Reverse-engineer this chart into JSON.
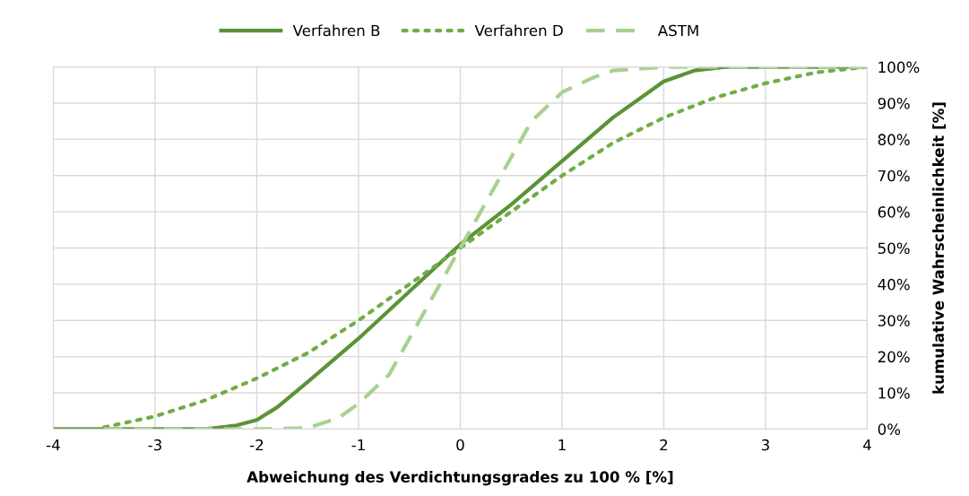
{
  "chart_data": {
    "type": "line",
    "xlabel": "Abweichung des Verdichtungsgrades zu 100 % [%]",
    "ylabel": "kumulative Wahrscheinlichkeit [%]",
    "xlim": [
      -4,
      4
    ],
    "xticks": [
      -4,
      -3,
      -2,
      -1,
      0,
      1,
      2,
      3,
      4
    ],
    "ylim": [
      0,
      100
    ],
    "yticks": [
      {
        "value": 0,
        "label": "0%"
      },
      {
        "value": 10,
        "label": "10%"
      },
      {
        "value": 20,
        "label": "20%"
      },
      {
        "value": 30,
        "label": "30%"
      },
      {
        "value": 40,
        "label": "40%"
      },
      {
        "value": 50,
        "label": "50%"
      },
      {
        "value": 60,
        "label": "60%"
      },
      {
        "value": 70,
        "label": "70%"
      },
      {
        "value": 80,
        "label": "80%"
      },
      {
        "value": 90,
        "label": "90%"
      },
      {
        "value": 100,
        "label": "100%"
      }
    ],
    "grid": true,
    "legend": "top",
    "marker": "none",
    "series": [
      {
        "name": "Verfahren B",
        "color": "#5b9337",
        "line_style": "solid",
        "x": [
          -4,
          -3,
          -2.5,
          -2.2,
          -2,
          -1.8,
          -1.5,
          -1,
          -0.5,
          0,
          0.5,
          1,
          1.5,
          1.8,
          2,
          2.3,
          2.6,
          4
        ],
        "values": [
          0,
          0,
          0,
          1,
          2.5,
          6,
          13,
          25,
          38,
          51,
          62,
          74,
          86,
          92,
          96,
          99,
          100,
          100
        ]
      },
      {
        "name": "Verfahren D",
        "color": "#70ad47",
        "line_style": "dotted",
        "x": [
          -3.5,
          -3,
          -2.5,
          -2,
          -1.5,
          -1,
          -0.5,
          0,
          0.5,
          1,
          1.5,
          2,
          2.5,
          3,
          3.5,
          4
        ],
        "values": [
          0.5,
          3.5,
          8,
          14,
          21,
          30,
          40,
          50,
          60,
          70,
          79,
          86,
          91.5,
          95.5,
          98.5,
          100
        ]
      },
      {
        "name": "ASTM",
        "color": "#a9d18e",
        "line_style": "dashed",
        "x": [
          -3.5,
          -2,
          -1.5,
          -1.2,
          -1,
          -0.7,
          -0.5,
          -0.3,
          0,
          0.3,
          0.5,
          0.7,
          1,
          1.3,
          1.5,
          2,
          4
        ],
        "values": [
          0,
          0,
          0.3,
          3,
          7,
          15,
          25,
          35,
          50,
          65,
          75,
          85,
          93,
          97,
          99,
          100,
          100
        ]
      }
    ]
  }
}
